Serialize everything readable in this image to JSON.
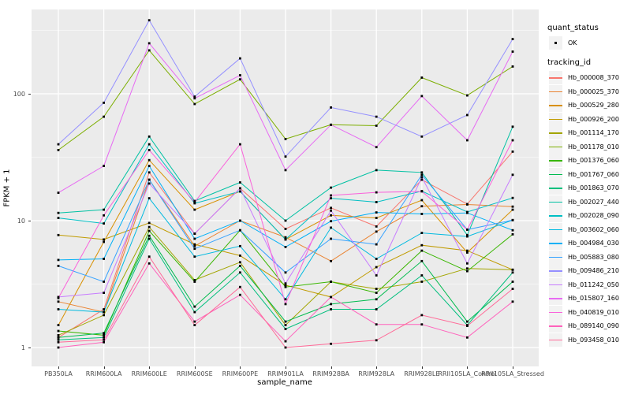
{
  "figure_title": "",
  "y_axis": {
    "title": "FPKM + 1"
  },
  "x_axis": {
    "title": "sample_name"
  },
  "legend": {
    "quant_status": {
      "title": "quant_status",
      "items": [
        {
          "label": "OK",
          "marker": "black-square-point"
        }
      ]
    },
    "tracking_id": {
      "title": "tracking_id"
    }
  },
  "style": {
    "panel_background": "#EBEBEB",
    "gridline_color": "#FFFFFF",
    "legend_key_background": "#F2F2F2",
    "point_color": "#000000",
    "tick_label_color": "#4D4D4D"
  },
  "chart_data": {
    "type": "line",
    "title": "",
    "xlabel": "sample_name",
    "ylabel": "FPKM + 1",
    "y_scale": "log10",
    "ylim": [
      0.71,
      462
    ],
    "y_major": [
      1,
      10,
      100
    ],
    "y_tick_labels": [
      "1",
      "10",
      "100"
    ],
    "y_minor": [
      3.162,
      31.62,
      316.2
    ],
    "grid": true,
    "legend_position": "right",
    "categories": [
      "PB350LA",
      "RRIM600LA",
      "RRIM600LE",
      "RRIM600SE",
      "RRIM600PE",
      "RRIM901LA",
      "RRIM928BA",
      "RRIM928LA",
      "RRIM928LE",
      "RRII105LA_Control",
      "RRII105LA_Stressed"
    ],
    "series": [
      {
        "name": "Hb_000008_370",
        "color": "#F8766D",
        "values": [
          1.2,
          2.0,
          24,
          7.9,
          18,
          8.6,
          12.6,
          9.0,
          21,
          13.5,
          35
        ]
      },
      {
        "name": "Hb_000025_370",
        "color": "#EA8331",
        "values": [
          2.3,
          1.9,
          21,
          6.3,
          10,
          7.4,
          4.8,
          8.2,
          13,
          13.4,
          12.9
        ]
      },
      {
        "name": "Hb_000529_280",
        "color": "#D89000",
        "values": [
          1.5,
          6.8,
          30,
          12.2,
          17,
          7.1,
          11.0,
          10.5,
          14.5,
          5.6,
          12.2
        ]
      },
      {
        "name": "Hb_000926_200",
        "color": "#C09B00",
        "values": [
          7.7,
          7.1,
          9.6,
          6.5,
          5.3,
          3.1,
          2.5,
          4.3,
          6.4,
          5.8,
          4.1
        ]
      },
      {
        "name": "Hb_001114_170",
        "color": "#A3A500",
        "values": [
          1.25,
          1.8,
          8.9,
          3.4,
          4.7,
          1.5,
          3.3,
          2.9,
          3.3,
          4.2,
          4.1
        ]
      },
      {
        "name": "Hb_001178_010",
        "color": "#7CAE00",
        "values": [
          36,
          66,
          220,
          83,
          130,
          44,
          57,
          56,
          134,
          97,
          164
        ]
      },
      {
        "name": "Hb_001376_060",
        "color": "#39B600",
        "values": [
          1.35,
          1.25,
          8.3,
          3.3,
          8.4,
          3.0,
          3.3,
          2.7,
          5.8,
          4.0,
          7.8
        ]
      },
      {
        "name": "Hb_001767_060",
        "color": "#00BB4E",
        "values": [
          1.2,
          1.3,
          7.6,
          2.1,
          4.4,
          1.6,
          2.2,
          2.4,
          4.8,
          1.6,
          3.3
        ]
      },
      {
        "name": "Hb_001863_070",
        "color": "#00BF7D",
        "values": [
          1.15,
          1.2,
          7.2,
          1.9,
          3.9,
          1.4,
          2.0,
          2.0,
          3.7,
          1.5,
          3.9
        ]
      },
      {
        "name": "Hb_002027_440",
        "color": "#00C1A3",
        "values": [
          11.5,
          12.2,
          46,
          14.3,
          20,
          10.0,
          18.2,
          25,
          24,
          7.7,
          55
        ]
      },
      {
        "name": "Hb_002028_090",
        "color": "#00BFC4",
        "values": [
          10.5,
          9.5,
          40,
          13.7,
          17,
          7.1,
          15,
          14,
          17.1,
          11.7,
          15.1
        ]
      },
      {
        "name": "Hb_003602_060",
        "color": "#00BAE0",
        "values": [
          2.0,
          1.9,
          15,
          5.2,
          6.3,
          2.4,
          8.8,
          5.0,
          8.0,
          7.5,
          10.1
        ]
      },
      {
        "name": "Hb_004984_030",
        "color": "#00B0F6",
        "values": [
          4.9,
          5.0,
          27,
          7.2,
          10,
          6.2,
          9.9,
          11.6,
          11.3,
          11.5,
          8.4
        ]
      },
      {
        "name": "Hb_005883_080",
        "color": "#35A2FF",
        "values": [
          4.4,
          3.3,
          21,
          6.0,
          8.4,
          3.9,
          7.2,
          6.5,
          23,
          8.5,
          10.1
        ]
      },
      {
        "name": "Hb_009486_210",
        "color": "#9590FF",
        "values": [
          40,
          85,
          380,
          95,
          190,
          32,
          78,
          66,
          46,
          68,
          270
        ]
      },
      {
        "name": "Hb_011242_050",
        "color": "#C77CFF",
        "values": [
          2.5,
          2.7,
          19.6,
          7.9,
          18,
          3.2,
          12,
          3.7,
          22,
          4.6,
          23
        ]
      },
      {
        "name": "Hb_015807_160",
        "color": "#E76BF3",
        "values": [
          16.6,
          27,
          250,
          92,
          140,
          25,
          57,
          38,
          96,
          43,
          215
        ]
      },
      {
        "name": "Hb_040819_010",
        "color": "#FA62DB",
        "values": [
          2.45,
          11,
          36,
          14,
          40,
          2.2,
          15.8,
          16.7,
          17,
          8.5,
          43
        ]
      },
      {
        "name": "Hb_089140_090",
        "color": "#FF62BC",
        "values": [
          1.0,
          1.1,
          4.6,
          1.6,
          2.6,
          1.12,
          2.5,
          1.52,
          1.52,
          1.2,
          2.3
        ]
      },
      {
        "name": "Hb_093458_010",
        "color": "#FF6A98",
        "values": [
          1.1,
          1.15,
          5.2,
          1.5,
          3.0,
          1.0,
          1.07,
          1.14,
          1.8,
          1.48,
          2.9
        ]
      }
    ]
  }
}
